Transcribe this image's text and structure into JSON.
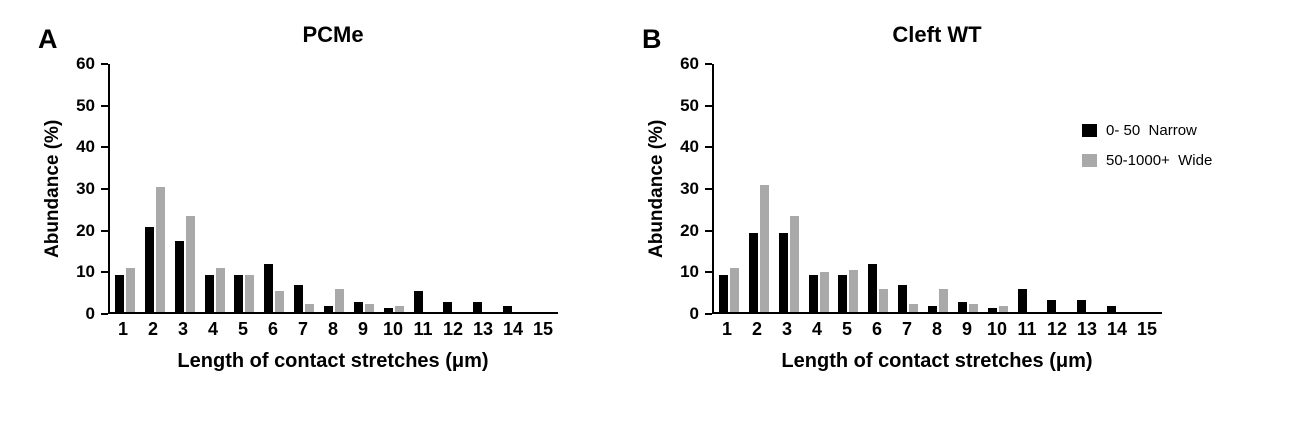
{
  "figure": {
    "panels": [
      {
        "letter": "A"
      },
      {
        "letter": "B"
      }
    ]
  },
  "legend": {
    "entries": [
      {
        "label": "0- 50  Narrow",
        "color": "#000000"
      },
      {
        "label": "50-1000+  Wide",
        "color": "#a9a9a9"
      }
    ]
  },
  "chart_data": [
    {
      "type": "bar",
      "title": "PCMe",
      "xlabel": "Length of contact stretches (μm)",
      "ylabel": "Abundance (%)",
      "ylim": [
        0,
        60
      ],
      "yticks": [
        0,
        10,
        20,
        30,
        40,
        50,
        60
      ],
      "categories": [
        "1",
        "2",
        "3",
        "4",
        "5",
        "6",
        "7",
        "8",
        "9",
        "10",
        "11",
        "12",
        "13",
        "14",
        "15"
      ],
      "series": [
        {
          "name": "0- 50 Narrow",
          "color": "#000000",
          "values": [
            9,
            20.5,
            17,
            9,
            9,
            11.5,
            6.5,
            1.5,
            2.5,
            1,
            5,
            2.5,
            2.5,
            1.5,
            0
          ]
        },
        {
          "name": "50-1000+ Wide",
          "color": "#a9a9a9",
          "values": [
            10.5,
            30,
            23,
            10.5,
            9,
            5,
            2,
            5.5,
            2,
            1.5,
            0,
            0,
            0,
            0,
            0
          ]
        }
      ]
    },
    {
      "type": "bar",
      "title": "Cleft WT",
      "xlabel": "Length of contact stretches (μm)",
      "ylabel": "Abundance (%)",
      "ylim": [
        0,
        60
      ],
      "yticks": [
        0,
        10,
        20,
        30,
        40,
        50,
        60
      ],
      "categories": [
        "1",
        "2",
        "3",
        "4",
        "5",
        "6",
        "7",
        "8",
        "9",
        "10",
        "11",
        "12",
        "13",
        "14",
        "15"
      ],
      "series": [
        {
          "name": "0- 50 Narrow",
          "color": "#000000",
          "values": [
            9,
            19,
            19,
            9,
            9,
            11.5,
            6.5,
            1.5,
            2.5,
            1,
            5.5,
            3,
            3,
            1.5,
            0
          ]
        },
        {
          "name": "50-1000+ Wide",
          "color": "#a9a9a9",
          "values": [
            10.5,
            30.5,
            23,
            9.5,
            10,
            5.5,
            2,
            5.5,
            2,
            1.5,
            0,
            0,
            0,
            0,
            0
          ]
        }
      ]
    }
  ]
}
